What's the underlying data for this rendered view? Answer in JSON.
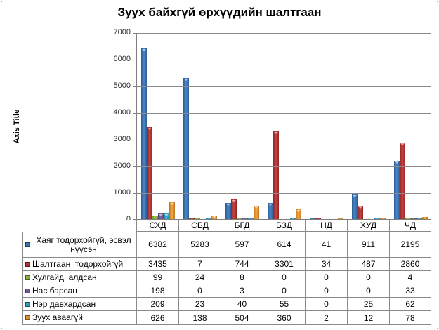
{
  "window": {
    "title": "Зуух байхгүй өрхүүдийн шалтгаан"
  },
  "chart_data": {
    "type": "bar",
    "title": "Зуух байхгүй өрхүүдийн шалтгаан",
    "xlabel": "",
    "ylabel": "Axis Title",
    "ylim": [
      0,
      7000
    ],
    "ytick_step": 1000,
    "grid": true,
    "legend_position": "data-table-left-column",
    "categories": [
      "СХД",
      "СБД",
      "БГД",
      "БЗД",
      "НД",
      "ХУД",
      "ЧД"
    ],
    "series": [
      {
        "name": "Хаяг тодорхойгүй, эсвэл нүүсэн",
        "color": "#4A86C8",
        "color_dark": "#2B5C94",
        "values": [
          6382,
          5283,
          597,
          614,
          41,
          911,
          2195
        ]
      },
      {
        "name": "Шалтгаан  тодорхойгүй",
        "color": "#C44442",
        "color_dark": "#8F2423",
        "values": [
          3435,
          7,
          744,
          3301,
          34,
          487,
          2860
        ]
      },
      {
        "name": "Хулгайд  алдсан",
        "color": "#A0C853",
        "color_dark": "#6F9630",
        "values": [
          99,
          24,
          8,
          0,
          0,
          0,
          4
        ]
      },
      {
        "name": "Нас барсан",
        "color": "#8566A8",
        "color_dark": "#5B4579",
        "values": [
          198,
          0,
          3,
          0,
          0,
          0,
          33
        ]
      },
      {
        "name": "Нэр давхардсан",
        "color": "#41B4D8",
        "color_dark": "#1E7F9D",
        "values": [
          209,
          23,
          40,
          55,
          0,
          25,
          62
        ]
      },
      {
        "name": "Зуух аваагүй",
        "color": "#F4A642",
        "color_dark": "#C07622",
        "values": [
          626,
          138,
          504,
          360,
          2,
          12,
          78
        ]
      }
    ],
    "colors": {
      "axis": "#7F7F7F",
      "gridline": "#8A8A8A",
      "table_border": "#8A8A8A",
      "title_text": "#000000"
    }
  }
}
